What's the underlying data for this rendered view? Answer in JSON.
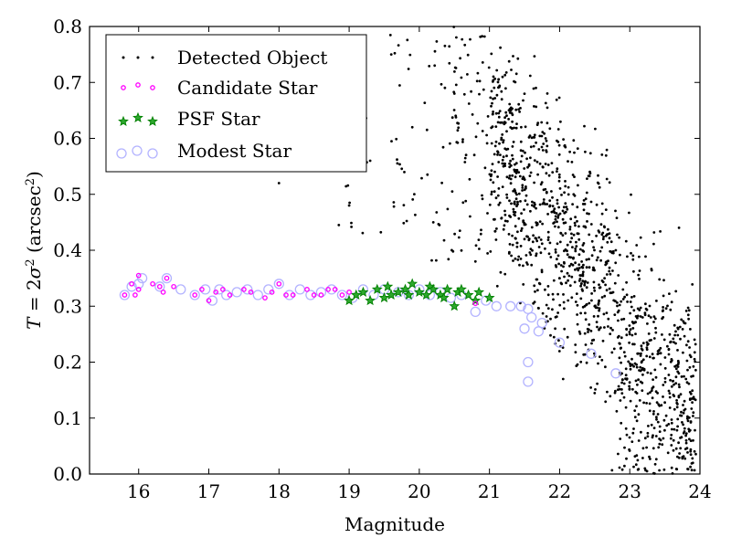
{
  "chart_data": {
    "type": "scatter",
    "title": "",
    "xlabel": "Magnitude",
    "ylabel": {
      "italic_T": "T",
      "eq": " = 2",
      "sigma": "σ",
      "sup2": "2",
      "unit": " (arcsec",
      "unit_sup": "2",
      "close": ")"
    },
    "xlim": [
      15.3,
      24.0
    ],
    "ylim": [
      0.0,
      0.8
    ],
    "x_ticks": [
      "16",
      "17",
      "18",
      "19",
      "20",
      "21",
      "22",
      "23",
      "24"
    ],
    "y_ticks": [
      "0.0",
      "0.1",
      "0.2",
      "0.3",
      "0.4",
      "0.5",
      "0.6",
      "0.7",
      "0.8"
    ],
    "grid": false,
    "legend_position": "top-left",
    "colors": {
      "detected": "#000000",
      "candidate": "#ff00ff",
      "psf": "#008000",
      "modest": "#b3b3ff"
    },
    "series": [
      {
        "name": "Detected Object",
        "marker": "dot",
        "sample_points": [
          [
            18.0,
            0.52
          ],
          [
            19.0,
            0.48
          ],
          [
            19.3,
            0.56
          ],
          [
            19.6,
            0.75
          ],
          [
            19.9,
            0.62
          ],
          [
            20.2,
            0.45
          ],
          [
            20.5,
            0.68
          ],
          [
            20.8,
            0.38
          ],
          [
            21.2,
            0.55
          ],
          [
            21.5,
            0.42
          ],
          [
            21.8,
            0.6
          ],
          [
            22.0,
            0.35
          ],
          [
            22.2,
            0.5
          ],
          [
            22.5,
            0.3
          ],
          [
            22.8,
            0.4
          ],
          [
            23.0,
            0.25
          ],
          [
            23.3,
            0.18
          ],
          [
            23.6,
            0.08
          ],
          [
            23.9,
            0.02
          ]
        ],
        "description": "dense cloud of about 2000 points, concentrated between magnitude 21 and 23.5"
      },
      {
        "name": "Candidate Star",
        "marker": "small magenta circle",
        "points": [
          [
            15.8,
            0.32
          ],
          [
            15.9,
            0.34
          ],
          [
            16.0,
            0.355
          ],
          [
            16.0,
            0.33
          ],
          [
            15.95,
            0.32
          ],
          [
            16.2,
            0.34
          ],
          [
            16.3,
            0.335
          ],
          [
            16.4,
            0.35
          ],
          [
            16.5,
            0.335
          ],
          [
            16.35,
            0.325
          ],
          [
            16.8,
            0.32
          ],
          [
            16.9,
            0.33
          ],
          [
            17.0,
            0.31
          ],
          [
            17.1,
            0.325
          ],
          [
            17.2,
            0.33
          ],
          [
            17.3,
            0.32
          ],
          [
            17.5,
            0.33
          ],
          [
            17.6,
            0.325
          ],
          [
            17.8,
            0.315
          ],
          [
            17.9,
            0.325
          ],
          [
            18.0,
            0.34
          ],
          [
            18.1,
            0.32
          ],
          [
            18.2,
            0.32
          ],
          [
            18.4,
            0.33
          ],
          [
            18.5,
            0.32
          ],
          [
            18.6,
            0.32
          ],
          [
            18.7,
            0.33
          ],
          [
            18.8,
            0.33
          ],
          [
            18.9,
            0.32
          ],
          [
            19.0,
            0.325
          ],
          [
            20.8,
            0.305
          ]
        ]
      },
      {
        "name": "PSF Star",
        "marker": "green star",
        "points": [
          [
            19.0,
            0.31
          ],
          [
            19.1,
            0.32
          ],
          [
            19.2,
            0.325
          ],
          [
            19.3,
            0.31
          ],
          [
            19.4,
            0.33
          ],
          [
            19.5,
            0.315
          ],
          [
            19.55,
            0.335
          ],
          [
            19.6,
            0.32
          ],
          [
            19.7,
            0.325
          ],
          [
            19.8,
            0.33
          ],
          [
            19.85,
            0.32
          ],
          [
            19.9,
            0.34
          ],
          [
            20.0,
            0.325
          ],
          [
            20.1,
            0.32
          ],
          [
            20.15,
            0.335
          ],
          [
            20.2,
            0.33
          ],
          [
            20.3,
            0.32
          ],
          [
            20.35,
            0.315
          ],
          [
            20.4,
            0.33
          ],
          [
            20.5,
            0.3
          ],
          [
            20.55,
            0.325
          ],
          [
            20.6,
            0.33
          ],
          [
            20.7,
            0.32
          ],
          [
            20.8,
            0.31
          ],
          [
            20.85,
            0.325
          ],
          [
            21.0,
            0.315
          ]
        ]
      },
      {
        "name": "Modest Star",
        "marker": "large open lavender circle",
        "points": [
          [
            15.8,
            0.32
          ],
          [
            15.9,
            0.335
          ],
          [
            16.0,
            0.34
          ],
          [
            16.05,
            0.35
          ],
          [
            16.3,
            0.335
          ],
          [
            16.4,
            0.35
          ],
          [
            16.6,
            0.33
          ],
          [
            16.8,
            0.32
          ],
          [
            16.95,
            0.33
          ],
          [
            17.05,
            0.31
          ],
          [
            17.15,
            0.33
          ],
          [
            17.25,
            0.32
          ],
          [
            17.4,
            0.325
          ],
          [
            17.55,
            0.33
          ],
          [
            17.7,
            0.32
          ],
          [
            17.85,
            0.33
          ],
          [
            18.0,
            0.34
          ],
          [
            18.15,
            0.32
          ],
          [
            18.3,
            0.33
          ],
          [
            18.45,
            0.32
          ],
          [
            18.6,
            0.325
          ],
          [
            18.75,
            0.33
          ],
          [
            18.9,
            0.32
          ],
          [
            19.05,
            0.315
          ],
          [
            19.2,
            0.33
          ],
          [
            19.35,
            0.32
          ],
          [
            19.5,
            0.33
          ],
          [
            19.7,
            0.325
          ],
          [
            19.85,
            0.32
          ],
          [
            20.0,
            0.33
          ],
          [
            20.15,
            0.32
          ],
          [
            20.3,
            0.325
          ],
          [
            20.45,
            0.315
          ],
          [
            20.6,
            0.32
          ],
          [
            20.8,
            0.29
          ],
          [
            20.95,
            0.31
          ],
          [
            21.1,
            0.3
          ],
          [
            21.3,
            0.3
          ],
          [
            21.45,
            0.3
          ],
          [
            21.55,
            0.295
          ],
          [
            21.6,
            0.28
          ],
          [
            21.75,
            0.27
          ],
          [
            21.5,
            0.26
          ],
          [
            21.7,
            0.255
          ],
          [
            22.0,
            0.235
          ],
          [
            21.55,
            0.2
          ],
          [
            22.45,
            0.215
          ],
          [
            21.55,
            0.165
          ],
          [
            22.8,
            0.18
          ]
        ]
      }
    ]
  }
}
